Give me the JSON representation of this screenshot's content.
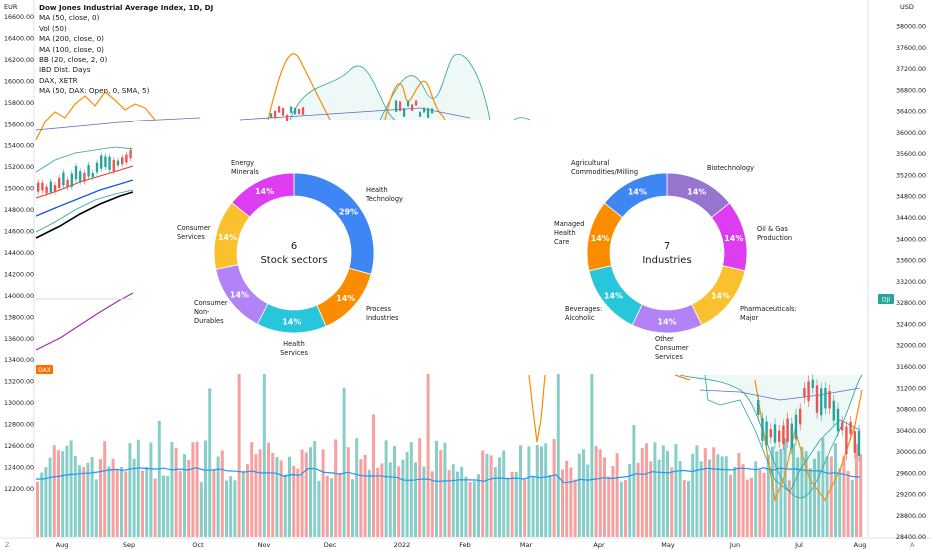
{
  "chart_title": "Dow Jones Industrial Average Index, 1D, DJ",
  "indicators": [
    "MA (50, close, 0)",
    "Vol (50)",
    "MA (200, close, 0)",
    "MA (100, close, 0)",
    "BB (20, close, 2, 0)",
    "IBD Dist. Days",
    "DAX, XETR",
    "MA (50, DAX: Open, 0, SMA, 5)"
  ],
  "left_currency": "EUR",
  "right_currency": "USD",
  "left_ticks": [
    "16600.00",
    "16400.00",
    "16200.00",
    "16000.00",
    "15800.00",
    "15600.00",
    "15400.00",
    "15200.00",
    "15000.00",
    "14800.00",
    "14600.00",
    "14400.00",
    "14200.00",
    "14000.00",
    "13800.00",
    "13600.00",
    "13400.00",
    "13200.00",
    "13000.00",
    "12800.00",
    "12600.00",
    "12400.00",
    "12200.00"
  ],
  "right_ticks": [
    "38000.00",
    "37600.00",
    "37200.00",
    "36800.00",
    "36400.00",
    "36000.00",
    "35600.00",
    "35200.00",
    "34800.00",
    "34400.00",
    "34000.00",
    "33600.00",
    "33200.00",
    "32800.00",
    "32400.00",
    "32000.00",
    "31600.00",
    "31200.00",
    "30800.00",
    "30400.00",
    "30000.00",
    "29600.00",
    "29200.00",
    "28800.00",
    "28400.00"
  ],
  "x_ticks": [
    "Aug",
    "Sep",
    "Oct",
    "Nov",
    "Dec",
    "2022",
    "Feb",
    "Mar",
    "Apr",
    "May",
    "Jun",
    "Jul",
    "Aug"
  ],
  "dax_badge": "DAX",
  "dj_badge": "DJI",
  "corner_left": "Z",
  "corner_right": "A",
  "colors": {
    "blue": "#3f86f5",
    "orange": "#fb8c00",
    "magenta": "#dd3cf0",
    "yellow": "#fbc02d",
    "lavender": "#b183f7",
    "teal": "#27c6da",
    "purple": "#9575cd",
    "up": "#26a69a",
    "down": "#ef5350"
  },
  "chart_data": [
    {
      "type": "pie",
      "title": "Stock sectors",
      "center_count": "6",
      "slices": [
        {
          "label": "Health Technology",
          "value": 29,
          "display": "29%",
          "color": "#3f86f5"
        },
        {
          "label": "Process Industries",
          "value": 14,
          "display": "14%",
          "color": "#fb8c00"
        },
        {
          "label": "Health Services",
          "value": 14,
          "display": "14%",
          "color": "#27c6da"
        },
        {
          "label": "Consumer Non-Durables",
          "value": 14,
          "display": "14%",
          "color": "#b183f7"
        },
        {
          "label": "Consumer Services",
          "value": 14,
          "display": "14%",
          "color": "#fbc02d"
        },
        {
          "label": "Energy Minerals",
          "value": 14,
          "display": "14%",
          "color": "#dd3cf0"
        }
      ]
    },
    {
      "type": "pie",
      "title": "Industries",
      "center_count": "7",
      "slices": [
        {
          "label": "Biotechnology",
          "value": 14,
          "display": "14%",
          "color": "#9575cd"
        },
        {
          "label": "Oil & Gas Production",
          "value": 14,
          "display": "14%",
          "color": "#dd3cf0"
        },
        {
          "label": "Pharmaceuticals: Major",
          "value": 14,
          "display": "14%",
          "color": "#fbc02d"
        },
        {
          "label": "Other Consumer Services",
          "value": 14,
          "display": "14%",
          "color": "#b183f7"
        },
        {
          "label": "Beverages: Alcoholic",
          "value": 14,
          "display": "14%",
          "color": "#27c6da"
        },
        {
          "label": "Managed Health Care",
          "value": 14,
          "display": "14%",
          "color": "#fb8c00"
        },
        {
          "label": "Agricultural Commodities/Milling",
          "value": 14,
          "display": "14%",
          "color": "#3f86f5"
        }
      ]
    }
  ]
}
